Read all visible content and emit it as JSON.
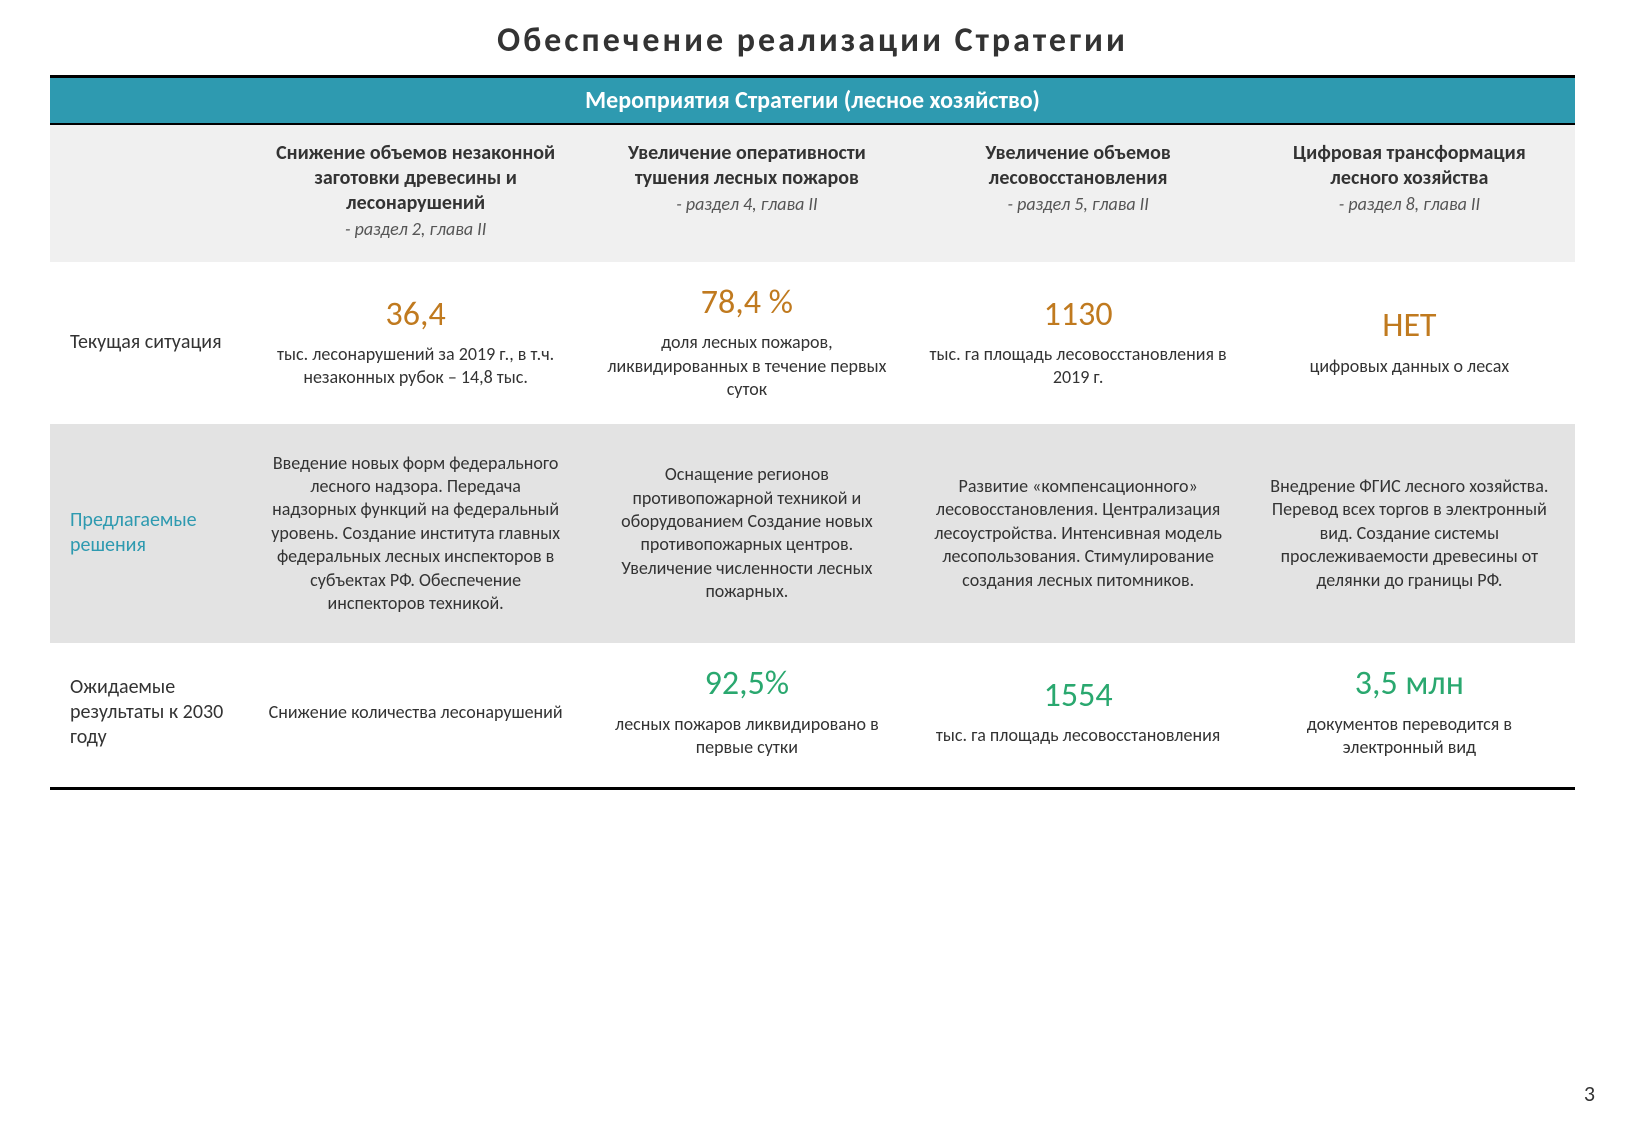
{
  "title": "Обеспечение  реализации  Стратегии",
  "banner": "Мероприятия Стратегии (лесное хозяйство)",
  "page_number": "3",
  "colors": {
    "banner_bg": "#2e9ab0",
    "banner_fg": "#ffffff",
    "big_orange": "#c07a1f",
    "big_green": "#2aa86f",
    "row_light": "#f0f0f0",
    "row_mid": "#e3e3e3",
    "rule": "#000000"
  },
  "fontsize": {
    "title": 34,
    "banner": 24,
    "header": 20,
    "rowlabel": 20,
    "big": 34,
    "desc": 18
  },
  "columns": [
    {
      "title": "Снижение объемов незаконной заготовки древесины и лесонарушений",
      "sub": "- раздел 2, глава II"
    },
    {
      "title": "Увеличение оперативности тушения лесных пожаров",
      "sub": "- раздел 4, глава II"
    },
    {
      "title": "Увеличение объемов лесовосстановления",
      "sub": "- раздел 5, глава II"
    },
    {
      "title": "Цифровая трансформация лесного хозяйства",
      "sub": "- раздел 8, глава II"
    }
  ],
  "rows": {
    "current": {
      "label": "Текущая ситуация",
      "cells": [
        {
          "big": "36,4",
          "desc": "тыс. лесонарушений за 2019 г., в т.ч. незаконных рубок – 14,8 тыс."
        },
        {
          "big": "78,4 %",
          "desc": "доля лесных пожаров, ликвидированных в течение первых суток"
        },
        {
          "big": "1130",
          "desc": "тыс. га площадь лесовосстановления в 2019 г."
        },
        {
          "big": "НЕТ",
          "desc": "цифровых данных о лесах"
        }
      ]
    },
    "solutions": {
      "label": "Предлагаемые решения",
      "cells": [
        {
          "desc": "Введение новых форм федерального лесного надзора. Передача надзорных функций на федеральный уровень. Создание института главных федеральных лесных инспекторов в субъектах РФ. Обеспечение инспекторов техникой."
        },
        {
          "desc": "Оснащение регионов противопожарной техникой и оборудованием Создание новых противопожарных центров. Увеличение численности лесных пожарных."
        },
        {
          "desc": "Развитие «компенсационного» лесовосстановления. Централизация лесоустройства. Интенсивная модель лесопользования. Стимулирование создания лесных питомников."
        },
        {
          "desc": "Внедрение ФГИС лесного хозяйства. Перевод всех торгов в электронный вид. Создание системы прослеживаемости древесины от делянки до границы РФ."
        }
      ]
    },
    "results": {
      "label": "Ожидаемые результаты к 2030 году",
      "cells": [
        {
          "big": "",
          "desc": "Снижение количества лесонарушений"
        },
        {
          "big": "92,5%",
          "desc": "лесных пожаров ликвидировано в первые сутки"
        },
        {
          "big": "1554",
          "desc": "тыс. га площадь лесовосстановления"
        },
        {
          "big": "3,5 млн",
          "desc": "документов переводится в электронный вид"
        }
      ]
    }
  }
}
